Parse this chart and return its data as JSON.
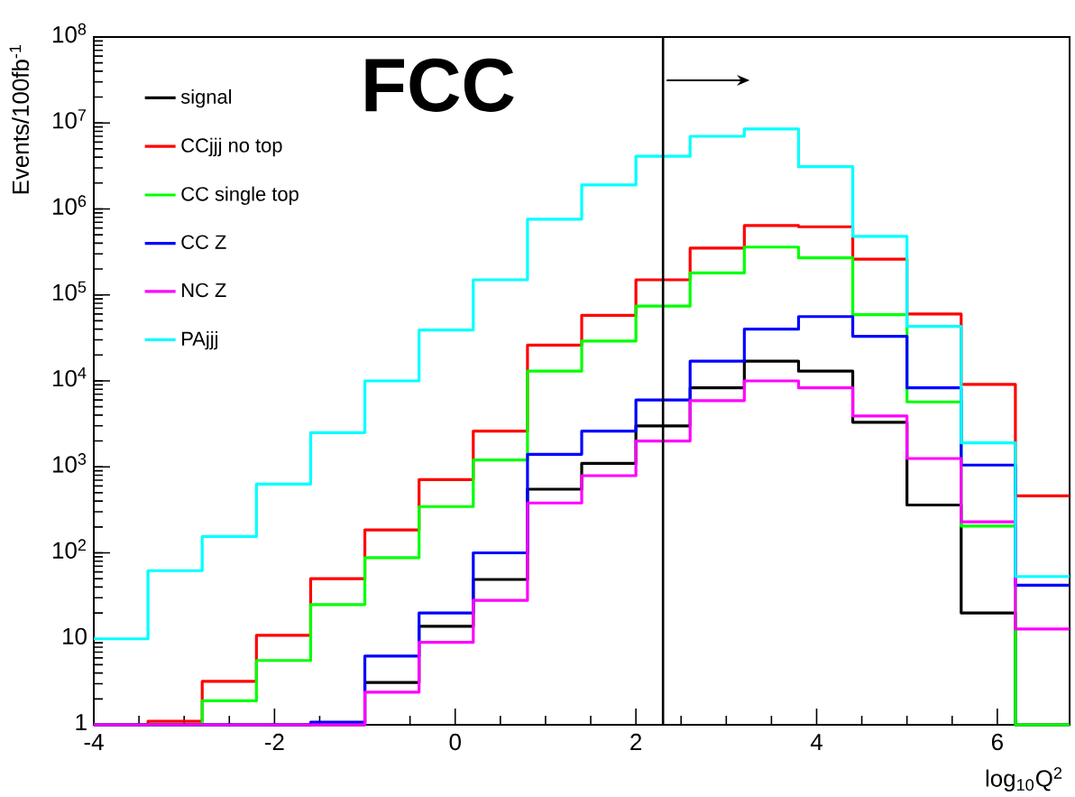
{
  "chart_data": {
    "type": "histogram",
    "ylabel": "Events/100fb$^{-1}$",
    "xlabel": "log$_{10}$Q$^{2}$",
    "annotations": [
      "FCC"
    ],
    "bins": [
      -4,
      -3.4,
      -2.8,
      -2.2,
      -1.6,
      -1.0,
      -0.4,
      0.2,
      0.8,
      1.4,
      2.0,
      2.6,
      3.2,
      3.8,
      4.4,
      5.0,
      5.6,
      6.2,
      6.8
    ],
    "series": [
      {
        "name": "signal",
        "color": "#000000",
        "values": [
          1,
          1,
          1,
          1,
          1,
          3.1,
          14,
          49,
          550,
          1100,
          3000,
          8300,
          17000,
          13000,
          3300,
          360,
          20,
          1
        ]
      },
      {
        "name": "CCjjj no top",
        "color": "#ff0000",
        "values": [
          1,
          1.1,
          3.2,
          11,
          50,
          185,
          710,
          2600,
          26000,
          58000,
          150000,
          350000,
          640000,
          620000,
          260000,
          60000,
          9100,
          460
        ]
      },
      {
        "name": "CC single top",
        "color": "#00ff00",
        "values": [
          1,
          1,
          1.9,
          5.6,
          25,
          88,
          345,
          1200,
          13000,
          29000,
          74000,
          180000,
          360000,
          270000,
          59000,
          5700,
          205,
          1
        ]
      },
      {
        "name": "CC Z",
        "color": "#0000ff",
        "values": [
          1,
          1,
          1,
          1,
          1.07,
          6.3,
          20,
          100,
          1400,
          2600,
          6000,
          17000,
          40000,
          56000,
          33000,
          8300,
          1050,
          42
        ]
      },
      {
        "name": "NC Z",
        "color": "#ff00ff",
        "values": [
          1,
          1,
          1,
          1,
          1,
          2.4,
          9.1,
          28,
          380,
          790,
          2000,
          5900,
          10000,
          8300,
          3900,
          1250,
          230,
          13
        ]
      },
      {
        "name": "PAjjj",
        "color": "#00ffff",
        "values": [
          10,
          62,
          155,
          630,
          2500,
          10000,
          39000,
          150000,
          760000,
          1900000,
          4100000,
          7000000,
          8500000,
          3100000,
          480000,
          43000,
          1900,
          53
        ]
      }
    ],
    "xlim": [
      -4,
      6.8
    ],
    "xticks": [
      -4,
      -2,
      0,
      2,
      4,
      6
    ],
    "ylim": [
      1,
      100000000
    ],
    "log": true,
    "yticks": [
      1,
      10,
      {
        "value": 100,
        "label": "10$^{2}$"
      },
      {
        "value": 1000,
        "label": "10$^{3}$"
      },
      {
        "value": 10000,
        "label": "10$^{4}$"
      },
      {
        "value": 100000,
        "label": "10$^{5}$"
      },
      {
        "value": 1000000,
        "label": "10$^{6}$"
      },
      {
        "value": 10000000,
        "label": "10$^{7}$"
      },
      {
        "value": 100000000,
        "label": "10$^{8}$"
      }
    ],
    "ref_lines": [
      {
        "axis": "x",
        "value": 2.3,
        "color": "#000000"
      }
    ],
    "legend": "top left"
  }
}
